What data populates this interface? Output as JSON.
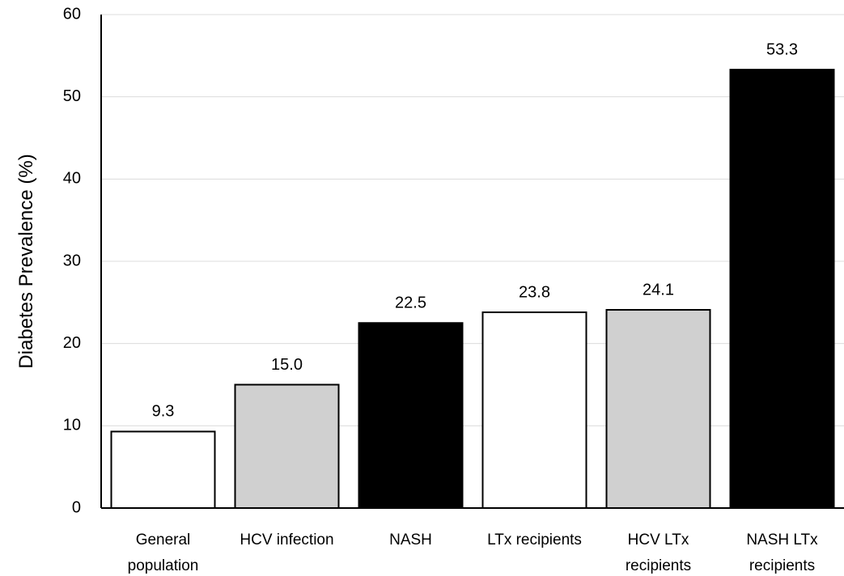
{
  "chart_data": {
    "type": "bar",
    "y_label": "Diabetes Prevalence (%)",
    "categories": [
      "General population",
      "HCV infection",
      "NASH",
      "LTx recipients",
      "HCV LTx recipients",
      "NASH LTx recipients"
    ],
    "values": [
      9.3,
      15.0,
      22.5,
      23.8,
      24.1,
      53.3
    ],
    "value_labels": [
      "9.3",
      "15.0",
      "22.5",
      "23.8",
      "24.1",
      "53.3"
    ],
    "colors": [
      "#ffffff",
      "#d0d0d0",
      "#000000",
      "#ffffff",
      "#d0d0d0",
      "#000000"
    ],
    "ylim": [
      0,
      60
    ],
    "yticks": [
      0,
      10,
      20,
      30,
      40,
      50,
      60
    ],
    "grid": true
  }
}
